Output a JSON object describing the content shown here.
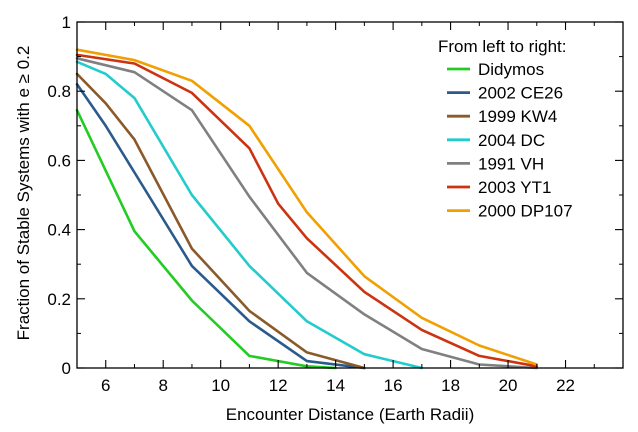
{
  "chart_data": {
    "type": "line",
    "xlabel": "Encounter Distance (Earth Radii)",
    "ylabel": "Fraction of Stable Systems with e ≥ 0.2",
    "xlim": [
      5,
      24
    ],
    "ylim": [
      0,
      1
    ],
    "xticks": [
      6,
      8,
      10,
      12,
      14,
      16,
      18,
      20,
      22
    ],
    "yticks": [
      0,
      0.2,
      0.4,
      0.6,
      0.8,
      1
    ],
    "ytick_labels": [
      "0",
      "0.2",
      "0.4",
      "0.6",
      "0.8",
      "1"
    ],
    "grid": false,
    "legend": {
      "title": "From left to right:",
      "position": "top-right"
    },
    "series": [
      {
        "name": "Didymos",
        "color": "#22cc22",
        "points": [
          [
            5,
            0.745
          ],
          [
            7,
            0.395
          ],
          [
            9,
            0.195
          ],
          [
            11,
            0.035
          ],
          [
            13,
            0.005
          ],
          [
            14,
            0.0
          ]
        ]
      },
      {
        "name": "2002 CE26",
        "color": "#2a5b8c",
        "points": [
          [
            5,
            0.82
          ],
          [
            6,
            0.7
          ],
          [
            7,
            0.565
          ],
          [
            9,
            0.295
          ],
          [
            11,
            0.135
          ],
          [
            13,
            0.02
          ],
          [
            15,
            0.0
          ]
        ]
      },
      {
        "name": "1999 KW4",
        "color": "#8b5a2b",
        "points": [
          [
            5,
            0.85
          ],
          [
            6,
            0.765
          ],
          [
            7,
            0.66
          ],
          [
            9,
            0.345
          ],
          [
            11,
            0.165
          ],
          [
            13,
            0.045
          ],
          [
            15,
            0.0
          ]
        ]
      },
      {
        "name": "2004 DC",
        "color": "#22cccc",
        "points": [
          [
            5,
            0.885
          ],
          [
            6,
            0.85
          ],
          [
            7,
            0.78
          ],
          [
            9,
            0.5
          ],
          [
            11,
            0.295
          ],
          [
            13,
            0.135
          ],
          [
            15,
            0.04
          ],
          [
            17,
            0.0
          ]
        ]
      },
      {
        "name": "1991 VH",
        "color": "#808080",
        "points": [
          [
            5,
            0.895
          ],
          [
            7,
            0.855
          ],
          [
            9,
            0.745
          ],
          [
            11,
            0.495
          ],
          [
            13,
            0.275
          ],
          [
            15,
            0.155
          ],
          [
            17,
            0.055
          ],
          [
            19,
            0.01
          ],
          [
            21,
            0.0
          ]
        ]
      },
      {
        "name": "2003 YT1",
        "color": "#cc3311",
        "points": [
          [
            5,
            0.905
          ],
          [
            7,
            0.88
          ],
          [
            9,
            0.795
          ],
          [
            11,
            0.635
          ],
          [
            12,
            0.475
          ],
          [
            13,
            0.375
          ],
          [
            15,
            0.22
          ],
          [
            17,
            0.11
          ],
          [
            19,
            0.035
          ],
          [
            21,
            0.005
          ]
        ]
      },
      {
        "name": "2000 DP107",
        "color": "#f0a000",
        "points": [
          [
            5,
            0.92
          ],
          [
            7,
            0.89
          ],
          [
            9,
            0.83
          ],
          [
            11,
            0.7
          ],
          [
            13,
            0.45
          ],
          [
            15,
            0.265
          ],
          [
            17,
            0.145
          ],
          [
            19,
            0.065
          ],
          [
            21,
            0.01
          ]
        ]
      }
    ]
  }
}
